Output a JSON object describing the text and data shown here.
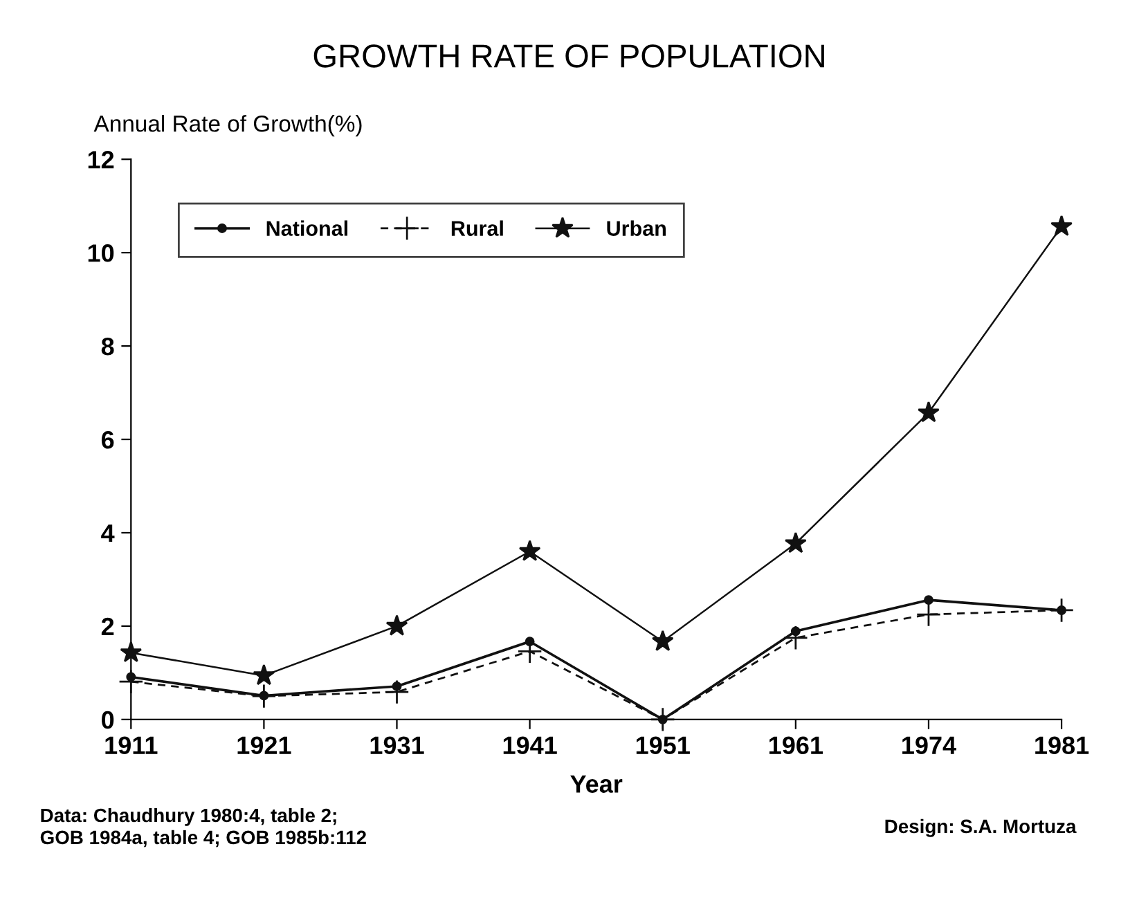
{
  "chart_data": {
    "type": "line",
    "title": "GROWTH RATE OF POPULATION",
    "ylabel": "Annual Rate of Growth(%)",
    "xlabel": "Year",
    "categories": [
      "1911",
      "1921",
      "1931",
      "1941",
      "1951",
      "1961",
      "1974",
      "1981"
    ],
    "series": [
      {
        "name": "National",
        "color": "#111111",
        "marker": "circle",
        "line_style": "solid",
        "values": [
          0.91,
          0.51,
          0.71,
          1.67,
          0,
          1.89,
          2.56,
          2.34
        ]
      },
      {
        "name": "Rural",
        "color": "#111111",
        "marker": "cross",
        "line_style": "dashed",
        "values": [
          0.81,
          0.5,
          0.59,
          1.46,
          0,
          1.75,
          2.25,
          2.34
        ]
      },
      {
        "name": "Urban",
        "color": "#111111",
        "marker": "star",
        "line_style": "solid",
        "values": [
          1.43,
          0.94,
          2.0,
          3.6,
          1.67,
          3.77,
          6.57,
          10.56
        ]
      }
    ],
    "ylim": [
      0,
      12
    ],
    "yticks": [
      0,
      2,
      4,
      6,
      8,
      10,
      12
    ],
    "grid": false,
    "legend": "top left",
    "annotations": [
      "Data: Chaudhury 1980:4, table 2;\nGOB 1984a, table 4; GOB 1985b:112",
      "Design: S.A. Mortuza"
    ]
  }
}
